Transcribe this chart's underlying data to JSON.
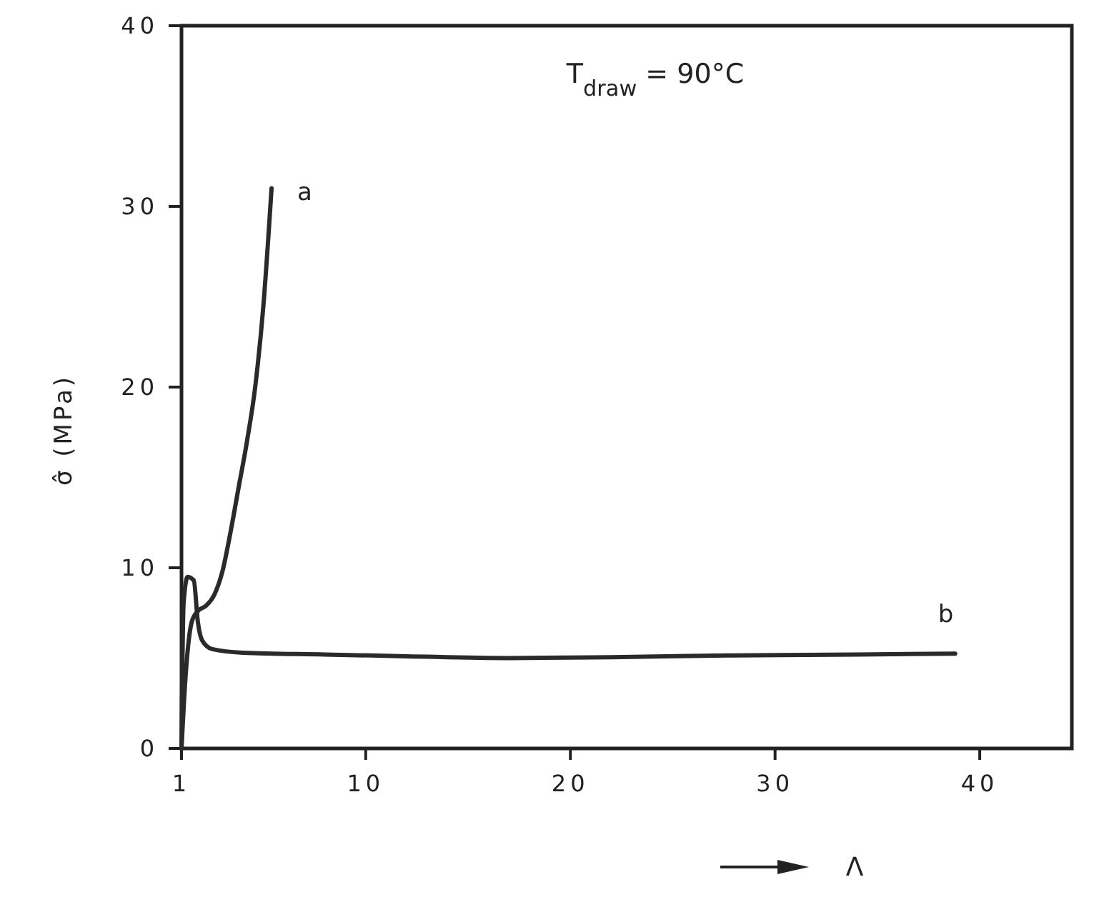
{
  "chart_data": {
    "type": "line",
    "xlabel": "Λ",
    "ylabel": "σ̂ (MPa)",
    "annotations": [
      "T$_{draw}$ = 90°C"
    ],
    "xlim": [
      1,
      44.5
    ],
    "ylim": [
      0,
      40
    ],
    "xticks": [
      1,
      10,
      20,
      30,
      40
    ],
    "yticks": [
      0,
      10,
      20,
      30,
      40
    ],
    "grid": false,
    "marker": "none",
    "line_style": "solid",
    "series": [
      {
        "name": "a",
        "color": "#2a2a2a",
        "x": [
          1,
          1.2,
          1.5,
          1.8,
          2.2,
          2.6,
          3,
          3.4,
          3.8,
          4.2,
          4.6,
          5,
          5.4
        ],
        "values": [
          0,
          4,
          7,
          7.6,
          7.9,
          8.5,
          9.8,
          12,
          14.5,
          17,
          20,
          24.5,
          31
        ]
      },
      {
        "name": "b",
        "color": "#2a2a2a",
        "x": [
          1,
          1.1,
          1.3,
          1.6,
          1.8,
          2,
          2.5,
          4,
          8,
          12,
          17,
          22,
          28,
          34,
          38.8
        ],
        "values": [
          0,
          8,
          9.5,
          9.3,
          7,
          6,
          5.5,
          5.3,
          5.2,
          5.1,
          5,
          5.05,
          5.15,
          5.2,
          5.25
        ]
      }
    ]
  }
}
